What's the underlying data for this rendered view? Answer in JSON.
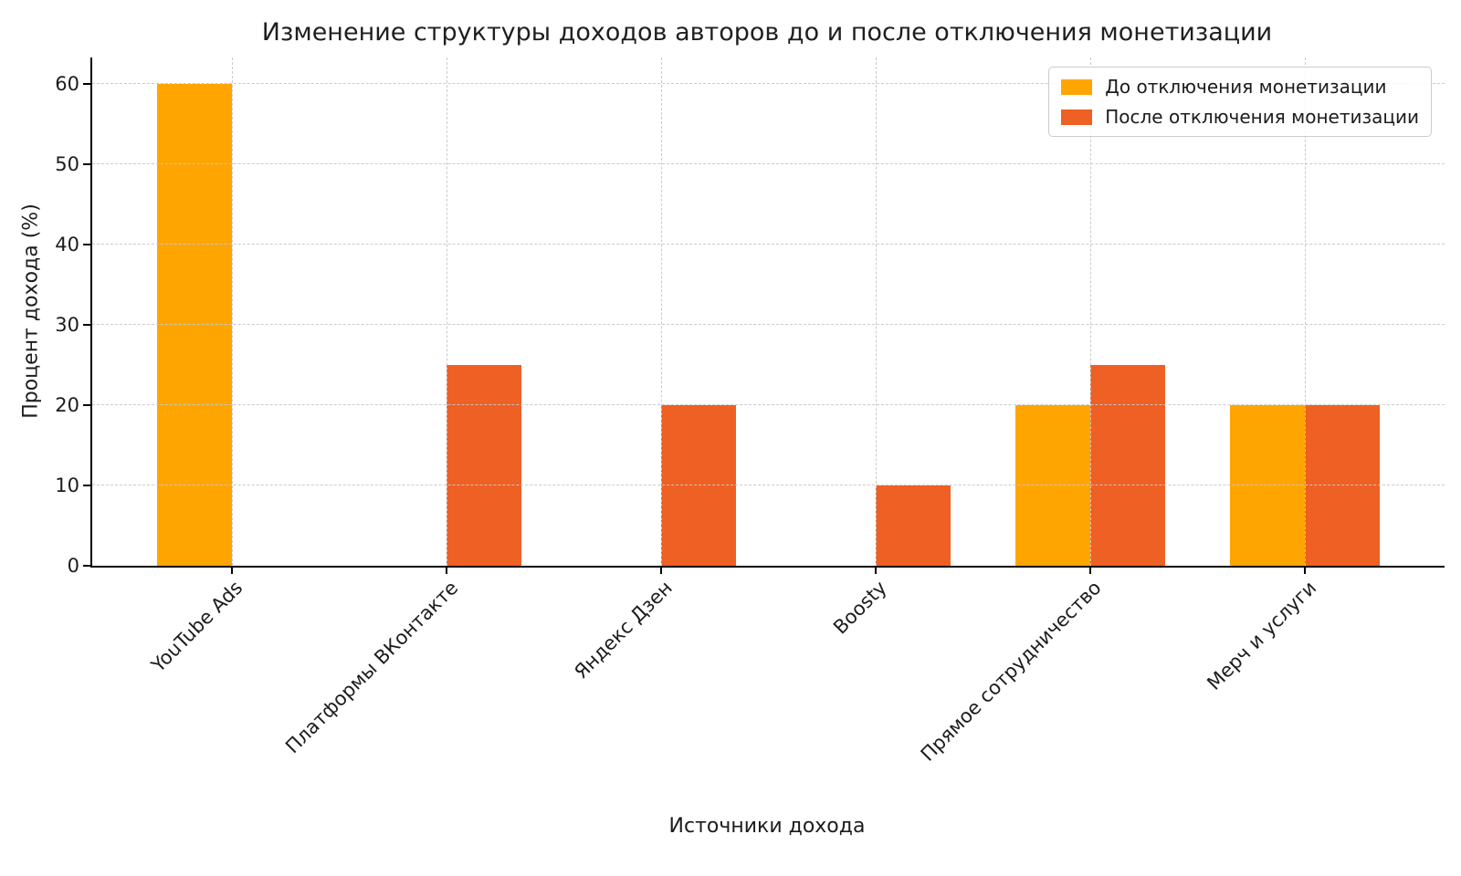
{
  "chart_data": {
    "type": "bar",
    "title": "Изменение структуры доходов авторов до и после отключения монетизации",
    "xlabel": "Источники дохода",
    "ylabel": "Процент дохода (%)",
    "categories": [
      "YouTube Ads",
      "Платформы ВКонтакте",
      "Яндекс Дзен",
      "Boosty",
      "Прямое сотрудничество",
      "Мерч и услуги"
    ],
    "series": [
      {
        "name": "До отключения монетизации",
        "color": "#FFA502",
        "values": [
          60,
          0,
          0,
          0,
          20,
          20
        ]
      },
      {
        "name": "После отключения монетизации",
        "color": "#EE6023",
        "values": [
          0,
          25,
          20,
          10,
          25,
          20
        ]
      }
    ],
    "yticks": [
      0,
      10,
      20,
      30,
      40,
      50,
      60
    ],
    "ylim": [
      0,
      63.3
    ],
    "grid": true,
    "grid_style": "dashed",
    "legend_position": "upper right",
    "bar_width_fraction": 0.35,
    "xtick_rotation_deg": 45
  }
}
